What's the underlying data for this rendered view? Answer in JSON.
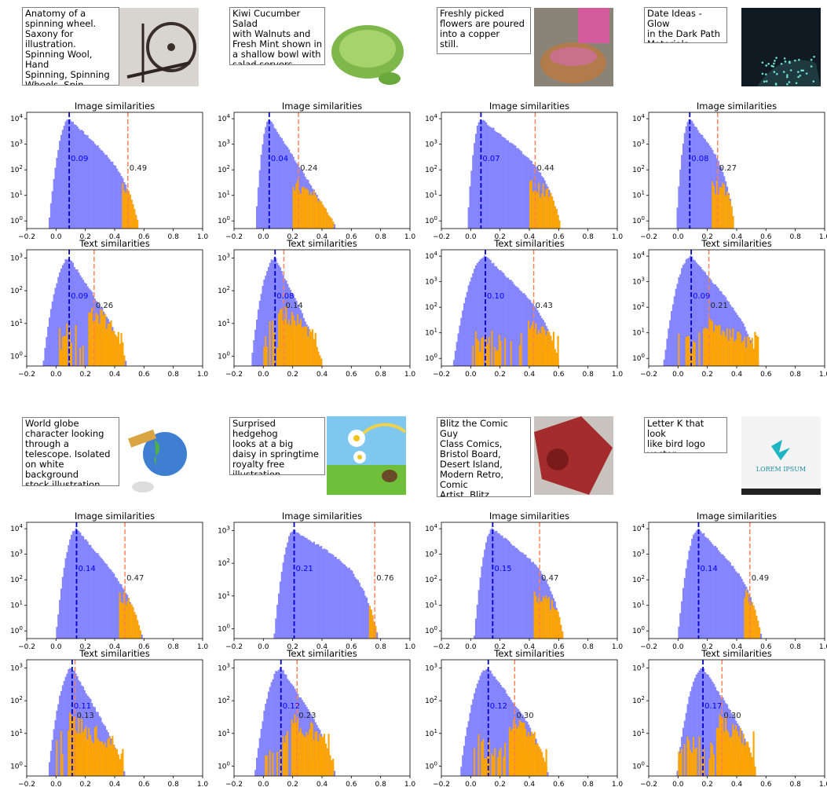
{
  "chart_data": [
    {
      "type": "histogram",
      "caption": "Anatomy of a\nspinning wheel.\nSaxony for\nillustration.\nSpinning Wool, Hand\nSpinning, Spinning\nWheels, Spin ...",
      "thumbnail": "spinning-wheel-photo",
      "image": {
        "title": "Image similarities",
        "peak": 0.09,
        "marker": 0.49,
        "mean_label": "0.09",
        "marker_label": "0.49",
        "ymax_exp": 4,
        "spread": 0.09,
        "tail": 0.1,
        "tail_end": 0.6,
        "xlim": [
          -0.2,
          1.0
        ]
      },
      "text": {
        "title": "Text similarities",
        "peak": 0.09,
        "marker": 0.26,
        "mean_label": "0.09",
        "marker_label": "0.26",
        "ymax_exp": 3,
        "spread": 0.13,
        "tail": 0.08,
        "tail_end": 0.6,
        "xlim": [
          -0.2,
          1.0
        ]
      }
    },
    {
      "type": "histogram",
      "caption": "Kiwi Cucumber Salad\nwith Walnuts and\nFresh Mint shown in\na shallow bowl with\nsalad servers.",
      "thumbnail": "salad-bowl-photo",
      "image": {
        "title": "Image similarities",
        "peak": 0.04,
        "marker": 0.24,
        "mean_label": "0.04",
        "marker_label": "0.24",
        "ymax_exp": 4,
        "spread": 0.06,
        "tail": 0.06,
        "tail_end": 0.9,
        "xlim": [
          -0.2,
          1.0
        ]
      },
      "text": {
        "title": "Text similarities",
        "peak": 0.08,
        "marker": 0.14,
        "mean_label": "0.08",
        "marker_label": "0.14",
        "ymax_exp": 3,
        "spread": 0.12,
        "tail": 0.06,
        "tail_end": 0.55,
        "xlim": [
          -0.2,
          1.0
        ]
      }
    },
    {
      "type": "histogram",
      "caption": "Freshly picked\nflowers are poured\ninto a copper\nstill.",
      "thumbnail": "copper-still-photo",
      "image": {
        "title": "Image similarities",
        "peak": 0.07,
        "marker": 0.44,
        "mean_label": "0.07",
        "marker_label": "0.44",
        "ymax_exp": 4,
        "spread": 0.06,
        "tail": 0.12,
        "tail_end": 0.65,
        "xlim": [
          -0.2,
          1.0
        ]
      },
      "text": {
        "title": "Text similarities",
        "peak": 0.1,
        "marker": 0.43,
        "mean_label": "0.10",
        "marker_label": "0.43",
        "ymax_exp": 4,
        "spread": 0.14,
        "tail": 0.1,
        "tail_end": 0.65,
        "xlim": [
          -0.2,
          1.0
        ]
      }
    },
    {
      "type": "histogram",
      "caption": "Date Ideas - Glow\nin the Dark Path\nMaterials",
      "thumbnail": "glow-path-photo",
      "image": {
        "title": "Image similarities",
        "peak": 0.08,
        "marker": 0.27,
        "mean_label": "0.08",
        "marker_label": "0.27",
        "ymax_exp": 4,
        "spread": 0.06,
        "tail": 0.07,
        "tail_end": 0.4,
        "xlim": [
          -0.2,
          1.0
        ]
      },
      "text": {
        "title": "Text similarities",
        "peak": 0.09,
        "marker": 0.21,
        "mean_label": "0.09",
        "marker_label": "0.21",
        "ymax_exp": 4,
        "spread": 0.12,
        "tail": 0.08,
        "tail_end": 0.62,
        "xlim": [
          -0.2,
          1.0
        ]
      }
    },
    {
      "type": "histogram",
      "caption": "World globe\ncharacter looking\nthrough a\ntelescope. Isolated\non white background\nstock illustration",
      "thumbnail": "globe-telescope-illustration",
      "image": {
        "title": "Image similarities",
        "peak": 0.14,
        "marker": 0.47,
        "mean_label": "0.14",
        "marker_label": "0.47",
        "ymax_exp": 4,
        "spread": 0.09,
        "tail": 0.08,
        "tail_end": 0.65,
        "xlim": [
          -0.2,
          1.0
        ]
      },
      "text": {
        "title": "Text similarities",
        "peak": 0.11,
        "marker": 0.13,
        "mean_label": "0.11",
        "marker_label": "0.13",
        "ymax_exp": 3,
        "spread": 0.12,
        "tail": 0.07,
        "tail_end": 0.6,
        "xlim": [
          -0.2,
          1.0
        ]
      }
    },
    {
      "type": "histogram",
      "caption": "Surprised hedgehog\nlooks at a big\ndaisy in springtime\nroyalty free\nillustration",
      "thumbnail": "hedgehog-daisy-illustration",
      "image": {
        "title": "Image similarities",
        "peak": 0.21,
        "marker": 0.76,
        "mean_label": "0.21",
        "marker_label": "0.76",
        "ymax_exp": 3,
        "spread": 0.1,
        "tail": 0.2,
        "tail_end": 0.82,
        "xlim": [
          -0.2,
          1.0
        ]
      },
      "text": {
        "title": "Text similarities",
        "peak": 0.12,
        "marker": 0.23,
        "mean_label": "0.12",
        "marker_label": "0.23",
        "ymax_exp": 3,
        "spread": 0.13,
        "tail": 0.08,
        "tail_end": 0.58,
        "xlim": [
          -0.2,
          1.0
        ]
      }
    },
    {
      "type": "histogram",
      "caption": "Blitz the Comic Guy\nClass Comics,\nBristol Board,\nDesert Island,\nModern Retro, Comic\nArtist, Blitz,\nSacred Geometr...",
      "thumbnail": "comic-crash-artwork",
      "image": {
        "title": "Image similarities",
        "peak": 0.15,
        "marker": 0.47,
        "mean_label": "0.15",
        "marker_label": "0.47",
        "ymax_exp": 4,
        "spread": 0.08,
        "tail": 0.12,
        "tail_end": 0.65,
        "xlim": [
          -0.2,
          1.0
        ]
      },
      "text": {
        "title": "Text similarities",
        "peak": 0.12,
        "marker": 0.3,
        "mean_label": "0.12",
        "marker_label": "0.30",
        "ymax_exp": 3,
        "spread": 0.14,
        "tail": 0.09,
        "tail_end": 0.62,
        "xlim": [
          -0.2,
          1.0
        ]
      }
    },
    {
      "type": "histogram",
      "caption": "Letter K that look\nlike bird logo\nvector",
      "thumbnail": "lorem-ipsum-logo",
      "thumbnail_text": "LOREM IPSUM",
      "image": {
        "title": "Image similarities",
        "peak": 0.14,
        "marker": 0.49,
        "mean_label": "0.14",
        "marker_label": "0.49",
        "ymax_exp": 4,
        "spread": 0.09,
        "tail": 0.09,
        "tail_end": 0.6,
        "xlim": [
          -0.2,
          1.0
        ]
      },
      "text": {
        "title": "Text similarities",
        "peak": 0.17,
        "marker": 0.3,
        "mean_label": "0.17",
        "marker_label": "0.30",
        "ymax_exp": 3,
        "spread": 0.13,
        "tail": 0.08,
        "tail_end": 0.62,
        "xlim": [
          -0.2,
          1.0
        ]
      }
    }
  ],
  "x_ticks": [
    "−0.2",
    "0.0",
    "0.2",
    "0.4",
    "0.6",
    "0.8",
    "1.0"
  ],
  "colors": {
    "all": "#7f7fff",
    "matched": "#ffa500",
    "mean_line": "#0000cc",
    "marker_line": "#ff7f50",
    "mean_text": "#0000ff",
    "marker_text": "#222222"
  }
}
